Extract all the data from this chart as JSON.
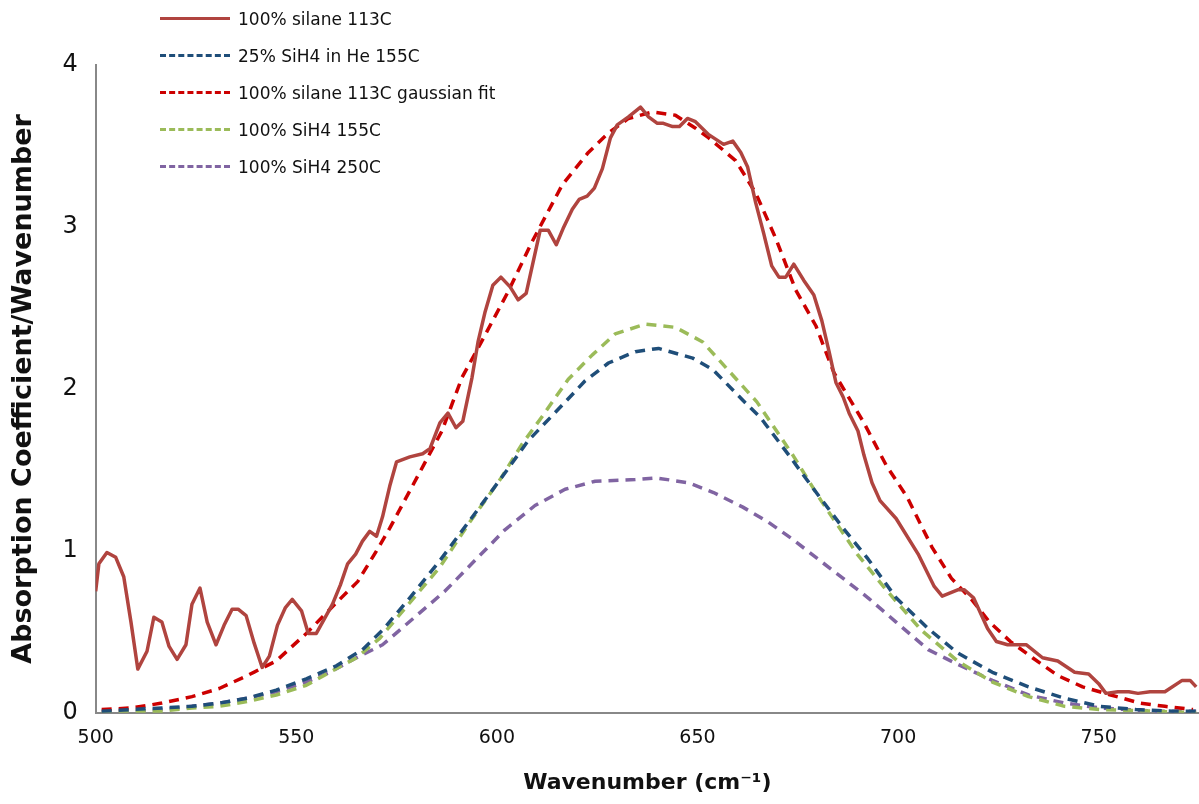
{
  "chart_data": {
    "type": "line",
    "xlabel": "Wavenumber (cm⁻¹)",
    "ylabel": "Absorption Coefficient/Wavenumber",
    "xlim": [
      500,
      775
    ],
    "xticks": [
      500,
      550,
      600,
      650,
      700,
      750
    ],
    "ylim": [
      0,
      4
    ],
    "yticks": [
      0,
      1,
      2,
      3,
      4
    ],
    "grid": false,
    "legend": "top left",
    "marker": "none",
    "series": [
      {
        "name": "100% silane 113C",
        "color": "#b0443f",
        "line_style": "solid",
        "x": [
          500,
          500.8,
          502.8,
          505,
          507,
          508.8,
          510.5,
          512.8,
          514.5,
          516.5,
          518.3,
          520.3,
          522.5,
          524,
          526,
          527.8,
          530,
          532,
          534,
          535.5,
          537.5,
          539.5,
          541.5,
          543.3,
          545.3,
          547.3,
          549,
          551.3,
          553,
          555,
          557,
          559,
          561,
          562.8,
          564.8,
          566.5,
          568.3,
          570,
          571.5,
          573.3,
          575,
          578.3,
          581.5,
          583.3,
          585.8,
          587.8,
          589.8,
          591.5,
          593.8,
          595.3,
          597,
          599,
          601,
          603.3,
          605.3,
          607.3,
          609,
          610.8,
          612.8,
          614.8,
          616.5,
          618.8,
          620.5,
          622.5,
          624.3,
          626.3,
          628.3,
          630,
          632.8,
          635.8,
          637.8,
          640,
          641.5,
          643.8,
          645.5,
          647.5,
          649.5,
          652.8,
          656.5,
          658.8,
          660.8,
          662.5,
          664.5,
          666.5,
          668.5,
          670.3,
          672,
          674,
          676.5,
          679,
          681,
          682.8,
          684.5,
          686.3,
          687.8,
          690,
          691.5,
          693.5,
          695.5,
          699.5,
          705,
          709,
          711,
          713,
          715,
          716.5,
          718.8,
          722.3,
          724.5,
          727.3,
          729.8,
          732,
          736,
          739.8,
          744,
          747.5,
          750,
          751.8,
          754.8,
          757.5,
          759.8,
          762.8,
          766.5,
          770.8,
          772.8,
          774.3
        ],
        "values": [
          0.75,
          0.92,
          0.99,
          0.96,
          0.84,
          0.56,
          0.27,
          0.38,
          0.59,
          0.56,
          0.41,
          0.33,
          0.42,
          0.67,
          0.77,
          0.56,
          0.42,
          0.54,
          0.64,
          0.64,
          0.6,
          0.43,
          0.28,
          0.35,
          0.54,
          0.65,
          0.7,
          0.63,
          0.49,
          0.49,
          0.58,
          0.67,
          0.79,
          0.92,
          0.98,
          1.06,
          1.12,
          1.09,
          1.21,
          1.4,
          1.55,
          1.58,
          1.6,
          1.63,
          1.79,
          1.85,
          1.76,
          1.8,
          2.07,
          2.29,
          2.47,
          2.64,
          2.69,
          2.63,
          2.55,
          2.59,
          2.78,
          2.98,
          2.98,
          2.89,
          2.99,
          3.11,
          3.17,
          3.19,
          3.24,
          3.36,
          3.55,
          3.63,
          3.68,
          3.74,
          3.68,
          3.64,
          3.64,
          3.62,
          3.62,
          3.67,
          3.65,
          3.57,
          3.51,
          3.53,
          3.46,
          3.37,
          3.15,
          2.96,
          2.76,
          2.69,
          2.69,
          2.77,
          2.67,
          2.58,
          2.42,
          2.23,
          2.04,
          1.95,
          1.85,
          1.74,
          1.59,
          1.42,
          1.31,
          1.2,
          0.98,
          0.78,
          0.72,
          0.74,
          0.76,
          0.76,
          0.71,
          0.52,
          0.44,
          0.42,
          0.42,
          0.42,
          0.34,
          0.32,
          0.25,
          0.24,
          0.18,
          0.12,
          0.13,
          0.13,
          0.12,
          0.13,
          0.13,
          0.2,
          0.2,
          0.16
        ]
      },
      {
        "name": "25% SiH4 in He 155C",
        "color": "#1f4e79",
        "line_style": "dashed",
        "x": [
          501.5,
          509,
          516.5,
          524,
          530.8,
          537.8,
          545,
          552.5,
          560,
          566.5,
          571.5,
          578.3,
          585.8,
          593.3,
          600.8,
          607.8,
          616.3,
          622,
          627.8,
          634.5,
          640.3,
          648.8,
          653.8,
          661.3,
          665.8,
          672.8,
          679,
          686.3,
          692.5,
          699.5,
          707.5,
          714.8,
          723.5,
          732.5,
          741.5,
          750.3,
          759.3,
          768.3,
          774.3
        ],
        "values": [
          0.01,
          0.02,
          0.03,
          0.04,
          0.06,
          0.09,
          0.14,
          0.21,
          0.29,
          0.39,
          0.51,
          0.71,
          0.94,
          1.19,
          1.44,
          1.68,
          1.9,
          2.05,
          2.16,
          2.23,
          2.25,
          2.19,
          2.12,
          1.93,
          1.82,
          1.59,
          1.38,
          1.14,
          0.95,
          0.71,
          0.52,
          0.37,
          0.25,
          0.16,
          0.09,
          0.04,
          0.02,
          0.01,
          0.01
        ]
      },
      {
        "name": "100% silane 113C gaussian fit",
        "color": "#cc0000",
        "line_style": "dashed",
        "x": [
          501.5,
          509,
          516.5,
          524,
          530.8,
          537.8,
          545,
          552.5,
          560,
          565.3,
          570,
          573.3,
          586.3,
          591.3,
          597,
          602.8,
          608.8,
          616.3,
          622.8,
          627.8,
          632.8,
          638.8,
          644.5,
          649.5,
          652.8,
          659.5,
          664.5,
          669.5,
          674.5,
          679.5,
          684,
          691.5,
          697,
          702.3,
          708.5,
          713.3,
          718.3,
          722.8,
          728,
          733.5,
          739.8,
          746,
          753,
          760.3,
          766.5,
          773.5
        ],
        "values": [
          0.02,
          0.03,
          0.06,
          0.1,
          0.15,
          0.23,
          0.32,
          0.49,
          0.68,
          0.81,
          1.0,
          1.14,
          1.74,
          2.07,
          2.33,
          2.6,
          2.91,
          3.26,
          3.46,
          3.58,
          3.67,
          3.71,
          3.69,
          3.61,
          3.55,
          3.41,
          3.21,
          2.93,
          2.61,
          2.39,
          2.1,
          1.79,
          1.53,
          1.33,
          1.02,
          0.83,
          0.7,
          0.56,
          0.44,
          0.34,
          0.23,
          0.16,
          0.11,
          0.06,
          0.04,
          0.02
        ]
      },
      {
        "name": "100% SiH4 155C",
        "color": "#9bbb59",
        "line_style": "dashed",
        "x": [
          501.5,
          509,
          516.5,
          524,
          530.8,
          537.8,
          545,
          552.5,
          558.3,
          565,
          570.8,
          578.3,
          585.8,
          593.3,
          600.8,
          606.3,
          611.3,
          617.8,
          623.8,
          629.5,
          637,
          644.5,
          651.3,
          664.8,
          673.8,
          680.8,
          689.8,
          697,
          705.8,
          714.8,
          723.5,
          732.5,
          741.5,
          750.3,
          763.8,
          774.3
        ],
        "values": [
          0.0,
          0.01,
          0.01,
          0.03,
          0.04,
          0.07,
          0.11,
          0.17,
          0.25,
          0.34,
          0.46,
          0.68,
          0.9,
          1.18,
          1.44,
          1.66,
          1.83,
          2.06,
          2.21,
          2.34,
          2.4,
          2.38,
          2.29,
          1.92,
          1.59,
          1.31,
          0.98,
          0.76,
          0.51,
          0.32,
          0.19,
          0.1,
          0.04,
          0.02,
          0.01,
          0.0
        ]
      },
      {
        "name": "100% SiH4 250C",
        "color": "#8064a2",
        "line_style": "dashed",
        "x": [
          501.5,
          509,
          516.5,
          524,
          530.8,
          537.8,
          545,
          552.5,
          558.3,
          565,
          571.5,
          579.5,
          587,
          594.5,
          602,
          609.5,
          617,
          624.5,
          634.5,
          639.8,
          647.8,
          654,
          661.3,
          667.5,
          673.8,
          680,
          686.3,
          692.5,
          699.5,
          707.5,
          714.8,
          723.5,
          732.5,
          741.5,
          750.3,
          763.8,
          774.3
        ],
        "values": [
          0.01,
          0.01,
          0.02,
          0.04,
          0.06,
          0.09,
          0.13,
          0.19,
          0.25,
          0.34,
          0.42,
          0.59,
          0.75,
          0.94,
          1.13,
          1.28,
          1.38,
          1.43,
          1.44,
          1.45,
          1.42,
          1.36,
          1.27,
          1.18,
          1.07,
          0.95,
          0.83,
          0.71,
          0.56,
          0.39,
          0.3,
          0.2,
          0.11,
          0.06,
          0.03,
          0.01,
          0.01
        ]
      }
    ]
  }
}
